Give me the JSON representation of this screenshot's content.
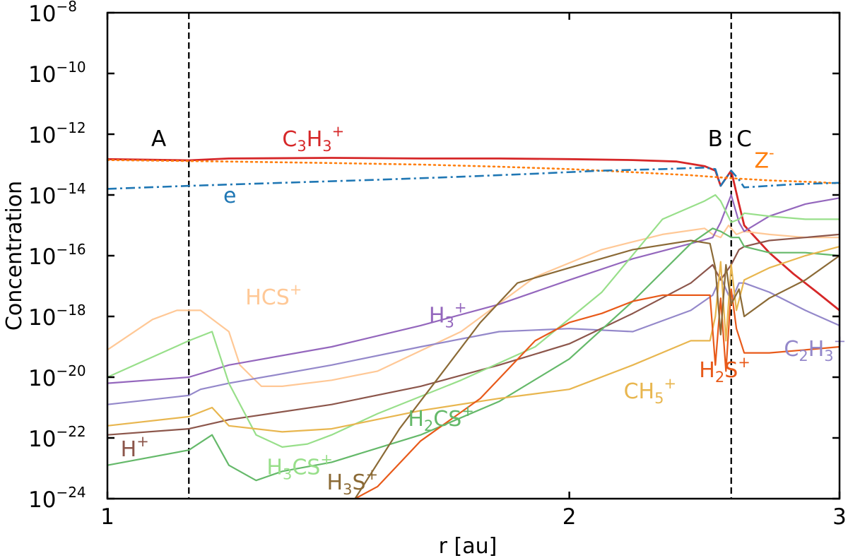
{
  "chart_data": {
    "type": "line",
    "xlabel": "r [au]",
    "ylabel": "Concentration",
    "x_scale": "log",
    "y_scale": "log",
    "xlim": [
      1,
      3
    ],
    "ylim": [
      1e-24,
      1e-08
    ],
    "x_ticks": [
      1,
      2,
      3
    ],
    "x_tick_labels": [
      "1",
      "2",
      "3"
    ],
    "y_ticks": [
      -24,
      -22,
      -20,
      -18,
      -16,
      -14,
      -12,
      -10,
      -8
    ],
    "y_tick_base": "10",
    "y_tick_exponents": [
      "−24",
      "−22",
      "−20",
      "−18",
      "−16",
      "−14",
      "−12",
      "−10",
      "−8"
    ],
    "vlines": [
      {
        "x": 1.13,
        "style": "dashed"
      },
      {
        "x": 2.55,
        "style": "dashed"
      }
    ],
    "region_labels": [
      {
        "text": "A",
        "x": 1.08,
        "y": -12.4
      },
      {
        "text": "B",
        "x": 2.49,
        "y": -12.4
      },
      {
        "text": "C",
        "x": 2.6,
        "y": -12.4
      }
    ],
    "series": [
      {
        "color": "#d62728",
        "dash": "solid",
        "width": 2.8,
        "label": {
          "base": "C",
          "sub1": "3",
          "mid": "H",
          "sub2": "3",
          "sup": "+"
        },
        "label_pos": [
          1.3,
          -12.4
        ],
        "x": [
          1.0,
          1.13,
          1.2,
          1.4,
          1.6,
          1.8,
          2.0,
          2.2,
          2.35,
          2.45,
          2.49,
          2.51,
          2.55,
          2.58,
          2.6,
          2.7,
          2.8,
          2.9,
          3.0
        ],
        "y": [
          -12.82,
          -12.86,
          -12.8,
          -12.78,
          -12.8,
          -12.8,
          -12.82,
          -12.85,
          -12.9,
          -13.05,
          -13.2,
          -13.7,
          -13.2,
          -14.3,
          -15.0,
          -15.9,
          -16.6,
          -17.2,
          -17.8
        ]
      },
      {
        "color": "#ff7f0e",
        "dash": "dotted",
        "width": 2.6,
        "label": {
          "base": "Z",
          "sup": "-"
        },
        "label_pos": [
          2.64,
          -13.1
        ],
        "x": [
          1.0,
          1.2,
          1.4,
          1.6,
          1.8,
          2.0,
          2.2,
          2.4,
          2.55,
          2.7,
          2.9,
          3.0
        ],
        "y": [
          -12.85,
          -12.9,
          -12.95,
          -13.0,
          -13.07,
          -13.15,
          -13.25,
          -13.35,
          -13.45,
          -13.52,
          -13.58,
          -13.62
        ]
      },
      {
        "color": "#1f77b4",
        "dash": "dashdot",
        "width": 2.6,
        "label": {
          "base": "e"
        },
        "label_pos": [
          1.19,
          -14.25
        ],
        "x": [
          1.0,
          1.13,
          1.3,
          1.5,
          1.7,
          1.9,
          2.1,
          2.3,
          2.45,
          2.49,
          2.51,
          2.55,
          2.58,
          2.6,
          2.7,
          2.8,
          3.0
        ],
        "y": [
          -13.8,
          -13.7,
          -13.6,
          -13.5,
          -13.4,
          -13.3,
          -13.2,
          -13.15,
          -13.1,
          -13.15,
          -13.7,
          -13.2,
          -13.5,
          -13.75,
          -13.7,
          -13.65,
          -13.6
        ]
      },
      {
        "color": "#ffc896",
        "dash": "solid",
        "width": 2.2,
        "label": {
          "base": "HCS",
          "sup": "+"
        },
        "label_pos": [
          1.23,
          -17.6
        ],
        "x": [
          1.0,
          1.07,
          1.11,
          1.15,
          1.2,
          1.22,
          1.26,
          1.3,
          1.4,
          1.5,
          1.7,
          1.9,
          2.1,
          2.3,
          2.45,
          2.48,
          2.51,
          2.54,
          2.57,
          2.6,
          2.7,
          2.85,
          3.0
        ],
        "y": [
          -19.1,
          -18.1,
          -17.8,
          -17.8,
          -18.5,
          -19.6,
          -20.3,
          -20.3,
          -20.1,
          -19.8,
          -18.5,
          -16.7,
          -15.8,
          -15.3,
          -15.1,
          -15.3,
          -15.4,
          -15.0,
          -15.3,
          -15.2,
          -15.3,
          -15.4,
          -15.4
        ]
      },
      {
        "color": "#9467bd",
        "dash": "solid",
        "width": 2.2,
        "label": {
          "base": "H",
          "sub1": "3",
          "sup": "+"
        },
        "label_pos": [
          1.62,
          -18.2
        ],
        "x": [
          1.0,
          1.13,
          1.2,
          1.4,
          1.6,
          1.8,
          2.0,
          2.2,
          2.4,
          2.48,
          2.51,
          2.55,
          2.58,
          2.6,
          2.7,
          2.85,
          3.0
        ],
        "y": [
          -20.2,
          -20.0,
          -19.6,
          -19.0,
          -18.3,
          -17.6,
          -16.8,
          -16.1,
          -15.6,
          -15.4,
          -14.9,
          -14.0,
          -14.9,
          -15.2,
          -14.7,
          -14.3,
          -14.1
        ]
      },
      {
        "color": "#9488ca",
        "dash": "solid",
        "width": 2.2,
        "label": {
          "base": "C",
          "sub1": "2",
          "mid": "H",
          "sub2": "3",
          "sup": "+"
        },
        "label_pos": [
          2.76,
          -19.3
        ],
        "x": [
          1.0,
          1.13,
          1.15,
          1.2,
          1.4,
          1.6,
          1.8,
          2.0,
          2.2,
          2.4,
          2.48,
          2.51,
          2.55,
          2.58,
          2.6,
          2.7,
          2.85,
          3.0
        ],
        "y": [
          -20.9,
          -20.6,
          -20.4,
          -20.2,
          -19.6,
          -19.0,
          -18.5,
          -18.4,
          -18.5,
          -17.8,
          -17.3,
          -16.7,
          -17.5,
          -16.9,
          -16.9,
          -17.2,
          -17.8,
          -18.3
        ]
      },
      {
        "color": "#8c564b",
        "dash": "solid",
        "width": 2.2,
        "label": {
          "base": "H",
          "sup": "+"
        },
        "label_pos": [
          1.02,
          -22.6
        ],
        "x": [
          1.0,
          1.13,
          1.2,
          1.4,
          1.6,
          1.8,
          2.0,
          2.2,
          2.4,
          2.48,
          2.51,
          2.55,
          2.58,
          2.6,
          2.7,
          2.85,
          3.0
        ],
        "y": [
          -21.9,
          -21.7,
          -21.4,
          -20.9,
          -20.3,
          -19.6,
          -18.9,
          -17.9,
          -16.9,
          -16.3,
          -16.8,
          -16.3,
          -15.8,
          -15.7,
          -15.5,
          -15.4,
          -15.3
        ]
      },
      {
        "color": "#98df8a",
        "dash": "solid",
        "width": 2.2,
        "label": {
          "base": "H",
          "sub1": "3",
          "mid": "CS",
          "sup": "+"
        },
        "label_pos": [
          1.27,
          -23.2
        ],
        "x": [
          1.0,
          1.13,
          1.17,
          1.2,
          1.25,
          1.3,
          1.35,
          1.4,
          1.5,
          1.7,
          1.9,
          2.1,
          2.3,
          2.45,
          2.49,
          2.51,
          2.55,
          2.58,
          2.6,
          2.7,
          2.85,
          3.0
        ],
        "y": [
          -20.0,
          -18.8,
          -18.5,
          -20.2,
          -21.9,
          -22.3,
          -22.2,
          -21.9,
          -21.2,
          -20.1,
          -19.0,
          -17.2,
          -14.8,
          -14.2,
          -14.0,
          -14.2,
          -14.9,
          -14.8,
          -14.6,
          -14.7,
          -14.8,
          -14.8
        ]
      },
      {
        "color": "#65b96a",
        "dash": "solid",
        "width": 2.2,
        "label": {
          "base": "H",
          "sub1": "2",
          "mid": "CS",
          "sup": "+"
        },
        "label_pos": [
          1.57,
          -21.6
        ],
        "x": [
          1.0,
          1.13,
          1.17,
          1.2,
          1.25,
          1.3,
          1.4,
          1.6,
          1.8,
          2.0,
          2.2,
          2.4,
          2.48,
          2.51,
          2.55,
          2.58,
          2.6,
          2.7,
          2.85,
          3.0
        ],
        "y": [
          -22.9,
          -22.4,
          -21.9,
          -22.9,
          -23.4,
          -23.1,
          -22.8,
          -21.9,
          -20.8,
          -19.4,
          -17.5,
          -15.6,
          -15.1,
          -15.2,
          -15.4,
          -15.4,
          -15.7,
          -15.9,
          -15.9,
          -16.0
        ]
      },
      {
        "color": "#e8b64f",
        "dash": "solid",
        "width": 2.2,
        "label": {
          "base": "CH",
          "sub1": "5",
          "sup": "+"
        },
        "label_pos": [
          2.17,
          -20.7
        ],
        "x": [
          1.0,
          1.13,
          1.17,
          1.2,
          1.3,
          1.4,
          1.6,
          1.8,
          2.0,
          2.2,
          2.4,
          2.47,
          2.49,
          2.51,
          2.53,
          2.55,
          2.57,
          2.6,
          2.7,
          2.85,
          3.0
        ],
        "y": [
          -21.6,
          -21.3,
          -21.0,
          -21.6,
          -21.8,
          -21.7,
          -21.1,
          -20.7,
          -20.4,
          -19.6,
          -18.8,
          -18.8,
          -18.0,
          -16.2,
          -18.8,
          -16.3,
          -17.8,
          -16.8,
          -16.4,
          -16.0,
          -15.7
        ]
      },
      {
        "color": "#e85a1a",
        "dash": "solid",
        "width": 2.2,
        "label": {
          "base": "H",
          "sub1": "2",
          "mid": "S",
          "sup": "+"
        },
        "label_pos": [
          2.43,
          -20.0
        ],
        "x": [
          1.45,
          1.5,
          1.6,
          1.75,
          1.9,
          2.0,
          2.1,
          2.2,
          2.3,
          2.4,
          2.45,
          2.47,
          2.49,
          2.51,
          2.53,
          2.55,
          2.57,
          2.6,
          2.7,
          2.85,
          3.0
        ],
        "y": [
          -24.0,
          -23.6,
          -22.1,
          -20.7,
          -18.8,
          -18.2,
          -17.9,
          -17.5,
          -17.3,
          -17.3,
          -17.3,
          -17.3,
          -19.6,
          -17.4,
          -19.8,
          -17.1,
          -18.4,
          -19.2,
          -19.2,
          -19.1,
          -19.0
        ]
      },
      {
        "color": "#8b6a36",
        "dash": "solid",
        "width": 2.2,
        "label": {
          "base": "H",
          "sub1": "3",
          "mid": "S",
          "sup": "+"
        },
        "label_pos": [
          1.39,
          -23.7
        ],
        "x": [
          1.45,
          1.55,
          1.65,
          1.75,
          1.85,
          2.0,
          2.2,
          2.4,
          2.47,
          2.49,
          2.51,
          2.53,
          2.55,
          2.58,
          2.6,
          2.7,
          2.85,
          3.0
        ],
        "y": [
          -24.0,
          -21.7,
          -19.9,
          -18.2,
          -16.9,
          -16.4,
          -15.8,
          -15.5,
          -15.6,
          -16.4,
          -18.6,
          -16.3,
          -17.6,
          -17.1,
          -18.0,
          -17.4,
          -16.8,
          -16.0
        ]
      }
    ]
  }
}
